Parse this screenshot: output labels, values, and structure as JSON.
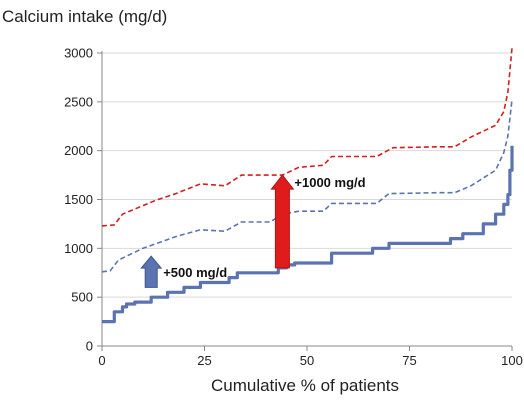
{
  "chart_data": {
    "type": "line",
    "ylabel": "Calcium intake (mg/d)",
    "xlabel": "Cumulative  % of patients",
    "xlim": [
      0,
      100
    ],
    "ylim": [
      0,
      3000
    ],
    "x_ticks": [
      0,
      25,
      50,
      75,
      100
    ],
    "y_ticks": [
      0,
      500,
      1000,
      1500,
      2000,
      2500,
      3000
    ],
    "grid": "horizontal",
    "series": [
      {
        "style": "solid",
        "color": "#5b73b0",
        "points": [
          [
            0,
            250
          ],
          [
            3,
            250
          ],
          [
            3,
            350
          ],
          [
            5,
            350
          ],
          [
            5,
            400
          ],
          [
            6,
            400
          ],
          [
            6,
            430
          ],
          [
            8,
            430
          ],
          [
            8,
            450
          ],
          [
            12,
            450
          ],
          [
            12,
            500
          ],
          [
            16,
            500
          ],
          [
            16,
            550
          ],
          [
            20,
            550
          ],
          [
            20,
            600
          ],
          [
            24,
            600
          ],
          [
            24,
            650
          ],
          [
            31,
            650
          ],
          [
            31,
            700
          ],
          [
            33,
            700
          ],
          [
            33,
            750
          ],
          [
            43,
            750
          ],
          [
            43,
            800
          ],
          [
            45,
            800
          ],
          [
            45,
            830
          ],
          [
            47,
            830
          ],
          [
            47,
            850
          ],
          [
            56,
            850
          ],
          [
            56,
            950
          ],
          [
            66,
            950
          ],
          [
            66,
            1000
          ],
          [
            70,
            1000
          ],
          [
            70,
            1050
          ],
          [
            85,
            1050
          ],
          [
            85,
            1100
          ],
          [
            88,
            1100
          ],
          [
            88,
            1150
          ],
          [
            93,
            1150
          ],
          [
            93,
            1250
          ],
          [
            96,
            1250
          ],
          [
            96,
            1350
          ],
          [
            98,
            1350
          ],
          [
            98,
            1450
          ],
          [
            99,
            1450
          ],
          [
            99,
            1550
          ],
          [
            99.5,
            1550
          ],
          [
            99.5,
            1800
          ],
          [
            100,
            1800
          ],
          [
            100,
            2050
          ]
        ]
      },
      {
        "style": "dashed",
        "color": "#5b73b0",
        "points": [
          [
            0,
            760
          ],
          [
            2,
            770
          ],
          [
            4,
            880
          ],
          [
            6,
            920
          ],
          [
            10,
            1000
          ],
          [
            14,
            1060
          ],
          [
            18,
            1120
          ],
          [
            24,
            1190
          ],
          [
            30,
            1175
          ],
          [
            34,
            1270
          ],
          [
            41,
            1270
          ],
          [
            44,
            1350
          ],
          [
            48,
            1380
          ],
          [
            54,
            1380
          ],
          [
            56,
            1460
          ],
          [
            62,
            1460
          ],
          [
            67,
            1460
          ],
          [
            70,
            1560
          ],
          [
            82,
            1570
          ],
          [
            86,
            1570
          ],
          [
            90,
            1640
          ],
          [
            96,
            1800
          ],
          [
            98,
            1980
          ],
          [
            99,
            2150
          ],
          [
            100,
            2520
          ]
        ]
      },
      {
        "style": "dashed",
        "color": "#d02020",
        "points": [
          [
            0,
            1230
          ],
          [
            3,
            1240
          ],
          [
            5,
            1350
          ],
          [
            9,
            1420
          ],
          [
            13,
            1490
          ],
          [
            18,
            1560
          ],
          [
            24,
            1660
          ],
          [
            30,
            1640
          ],
          [
            34,
            1750
          ],
          [
            44,
            1750
          ],
          [
            48,
            1830
          ],
          [
            54,
            1850
          ],
          [
            56,
            1940
          ],
          [
            64,
            1940
          ],
          [
            67,
            1940
          ],
          [
            71,
            2030
          ],
          [
            82,
            2040
          ],
          [
            86,
            2040
          ],
          [
            90,
            2140
          ],
          [
            96,
            2260
          ],
          [
            98,
            2400
          ],
          [
            99,
            2600
          ],
          [
            100,
            3050
          ]
        ]
      }
    ],
    "annotations": [
      {
        "text": "+500 mg/d",
        "x": 12,
        "y": 750,
        "color": "#5b73b0",
        "arrow_from": 600,
        "arrow_to": 920
      },
      {
        "text": "+1000 mg/d",
        "x": 44,
        "y": 1570,
        "color": "#e01b1b",
        "arrow_from": 800,
        "arrow_to": 1750
      }
    ]
  }
}
